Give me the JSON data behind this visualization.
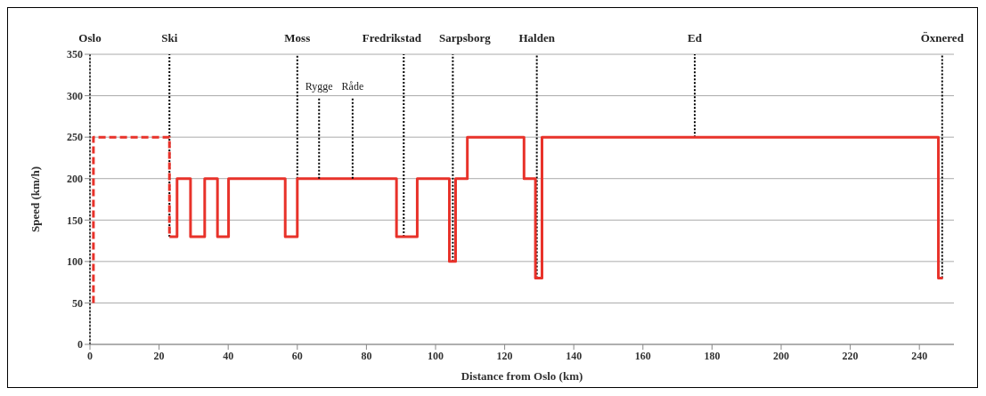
{
  "chart_data": {
    "type": "step",
    "xlabel": "Distance from Oslo (km)",
    "ylabel": "Speed (km/h)",
    "xlim": [
      0,
      250
    ],
    "xticks": [
      0,
      20,
      40,
      60,
      80,
      100,
      120,
      140,
      160,
      180,
      200,
      220,
      240
    ],
    "ylim": [
      0,
      350
    ],
    "yticks": [
      0,
      50,
      100,
      150,
      200,
      250,
      300,
      350
    ],
    "grid": "y",
    "marker": "none",
    "series": [
      {
        "color": "#e8322a",
        "line_style": "solid",
        "x": [
          23,
          25.2,
          29.1,
          33.2,
          36.9,
          40.1,
          56.5,
          60,
          88.7,
          94.7,
          104,
          105.8,
          109.2,
          125.6,
          128.9,
          130.8,
          245.5,
          246.8
        ],
        "values": [
          130,
          200,
          130,
          200,
          130,
          200,
          130,
          200,
          130,
          200,
          100,
          200,
          250,
          200,
          80,
          250,
          80,
          80
        ]
      },
      {
        "type": "line",
        "color": "#e8322a",
        "line_style": "dashed",
        "x": [
          1,
          1,
          23,
          23
        ],
        "values": [
          50,
          250,
          250,
          130
        ]
      }
    ],
    "ref_lines": [
      {
        "axis": "x",
        "value": 0,
        "label": "Oslo",
        "color": "#000000",
        "line_style": "dotted"
      },
      {
        "axis": "x",
        "value": 23,
        "label": "Ski",
        "color": "#000000",
        "line_style": "dotted"
      },
      {
        "axis": "x",
        "value": 60,
        "label": "Moss",
        "color": "#000000",
        "line_style": "dotted"
      },
      {
        "axis": "x",
        "value": 90.8,
        "label": "Fredrikstad",
        "color": "#000000",
        "line_style": "dotted"
      },
      {
        "axis": "x",
        "value": 105,
        "label": "Sarpsborg",
        "color": "#000000",
        "line_style": "dotted"
      },
      {
        "axis": "x",
        "value": 129.3,
        "label": "Halden",
        "color": "#000000",
        "line_style": "dotted"
      },
      {
        "axis": "x",
        "value": 175,
        "label": "Ed",
        "color": "#000000",
        "line_style": "dotted"
      },
      {
        "axis": "x",
        "value": 246.6,
        "label": "Öxnered",
        "color": "#000000",
        "line_style": "dotted"
      }
    ],
    "annotations": [
      {
        "text": "Rygge",
        "x": 66.3,
        "y": 200
      },
      {
        "text": "Råde",
        "x": 76,
        "y": 200
      }
    ]
  }
}
